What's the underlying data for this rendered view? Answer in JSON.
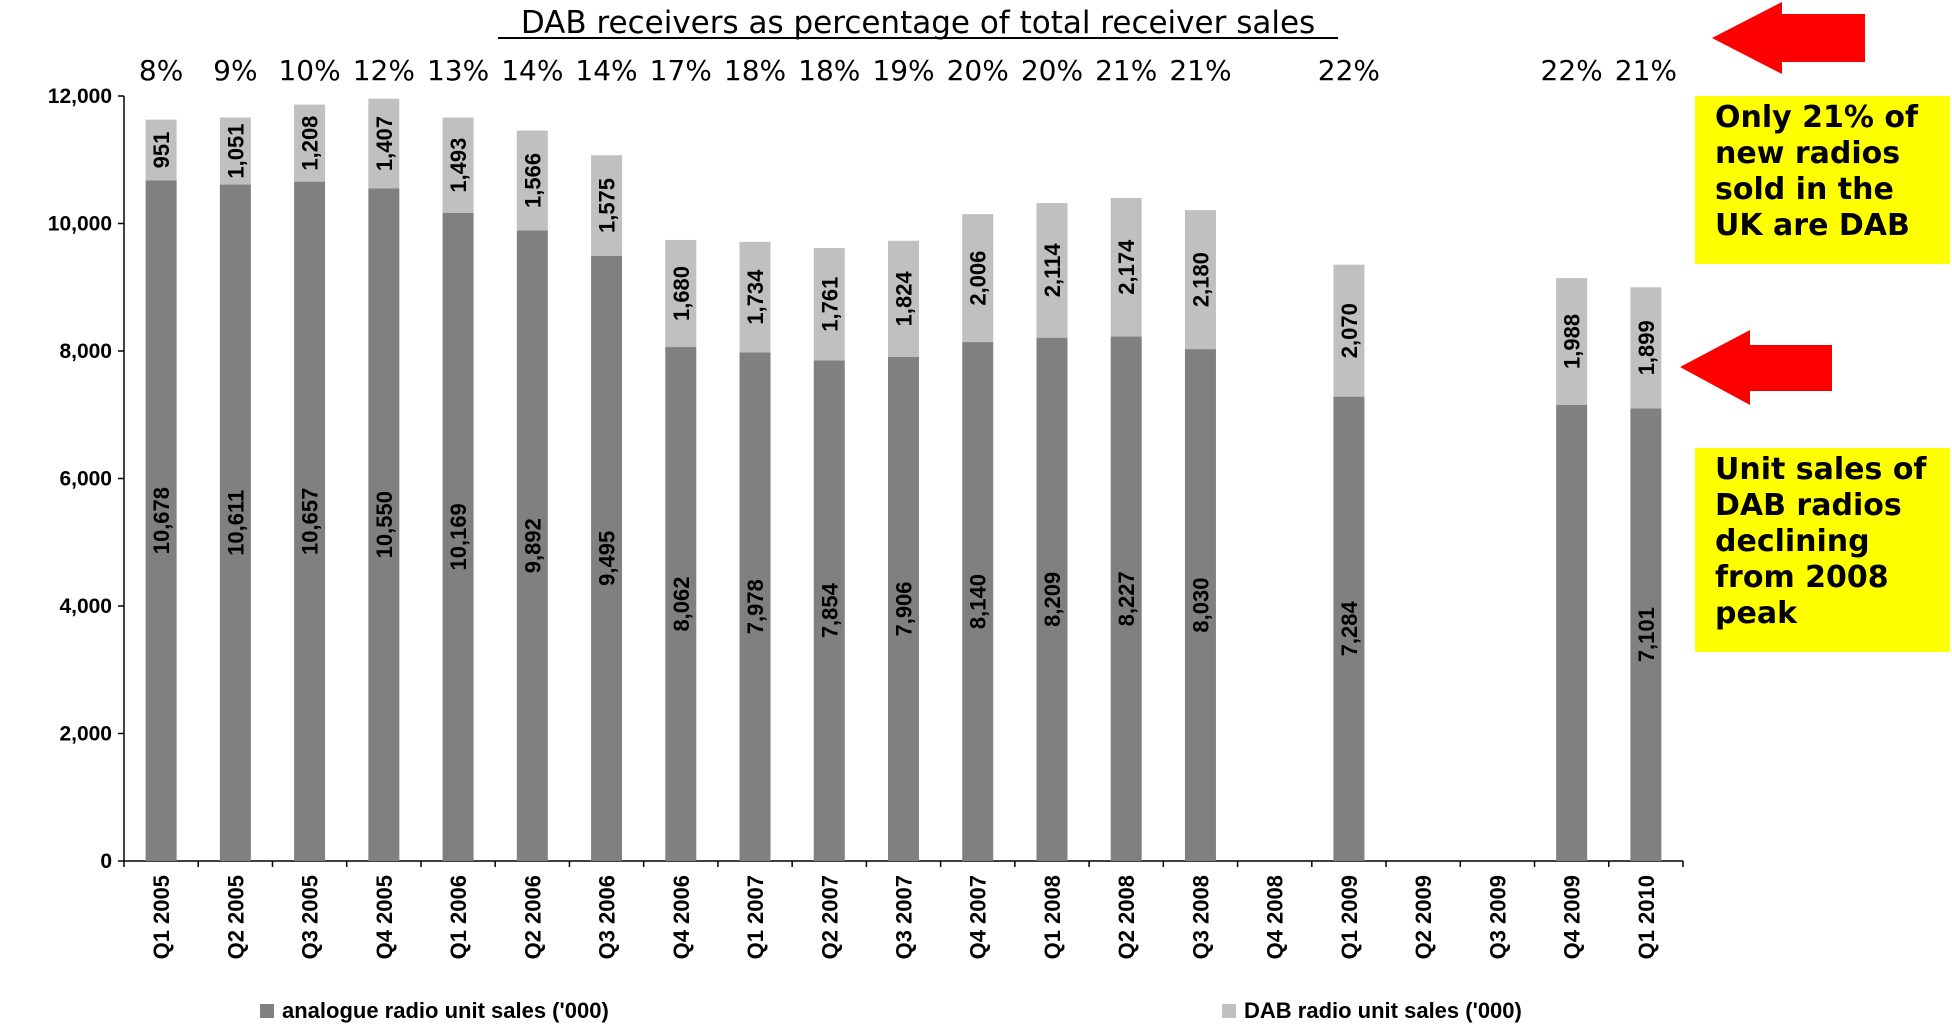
{
  "callouts": {
    "dab_share": "Only 21% of new radios sold in the UK are DAB",
    "unit_decline": "Unit sales of DAB radios declining from 2008 peak"
  },
  "chart_data": {
    "type": "bar",
    "stacked": true,
    "title": "DAB receivers as percentage of total receiver sales",
    "xlabel": "",
    "ylabel": "",
    "ylim": [
      0,
      12000
    ],
    "yticks": [
      0,
      2000,
      4000,
      6000,
      8000,
      10000,
      12000
    ],
    "ytick_labels": [
      "0",
      "2,000",
      "4,000",
      "6,000",
      "8,000",
      "10,000",
      "12,000"
    ],
    "grid": false,
    "legend_position": "bottom",
    "categories": [
      "Q1 2005",
      "Q2 2005",
      "Q3 2005",
      "Q4 2005",
      "Q1 2006",
      "Q2 2006",
      "Q3 2006",
      "Q4 2006",
      "Q1 2007",
      "Q2 2007",
      "Q3 2007",
      "Q4 2007",
      "Q1 2008",
      "Q2 2008",
      "Q3 2008",
      "Q4 2008",
      "Q1 2009",
      "Q2 2009",
      "Q3 2009",
      "Q4 2009",
      "Q1 2010"
    ],
    "series": [
      {
        "name": "analogue radio unit sales ('000)",
        "color": "#808080",
        "values": [
          10678,
          10611,
          10657,
          10550,
          10169,
          9892,
          9495,
          8062,
          7978,
          7854,
          7906,
          8140,
          8209,
          8227,
          8030,
          null,
          7284,
          null,
          null,
          7156,
          7101
        ],
        "labels": [
          "10,678",
          "10,611",
          "10,657",
          "10,550",
          "10,169",
          "9,892",
          "9,495",
          "8,062",
          "7,978",
          "7,854",
          "7,906",
          "8,140",
          "8,209",
          "8,227",
          "8,030",
          "",
          "7,284",
          "",
          "",
          "",
          "7,101"
        ]
      },
      {
        "name": "DAB radio unit sales ('000)",
        "color": "#c0c0c0",
        "values": [
          951,
          1051,
          1208,
          1407,
          1493,
          1566,
          1575,
          1680,
          1734,
          1761,
          1824,
          2006,
          2114,
          2174,
          2180,
          null,
          2070,
          null,
          null,
          1988,
          1899
        ],
        "labels": [
          "951",
          "1,051",
          "1,208",
          "1,407",
          "1,493",
          "1,566",
          "1,575",
          "1,680",
          "1,734",
          "1,761",
          "1,824",
          "2,006",
          "2,114",
          "2,174",
          "2,180",
          "",
          "2,070",
          "",
          "",
          "1,988",
          "1,899"
        ]
      }
    ],
    "percent_labels": [
      "8%",
      "9%",
      "10%",
      "12%",
      "13%",
      "14%",
      "14%",
      "17%",
      "18%",
      "18%",
      "19%",
      "20%",
      "20%",
      "21%",
      "21%",
      "",
      "22%",
      "",
      "",
      "22%",
      "21%"
    ],
    "colors": {
      "arrow": "#ff0000",
      "callout_bg": "#ffff00"
    }
  }
}
